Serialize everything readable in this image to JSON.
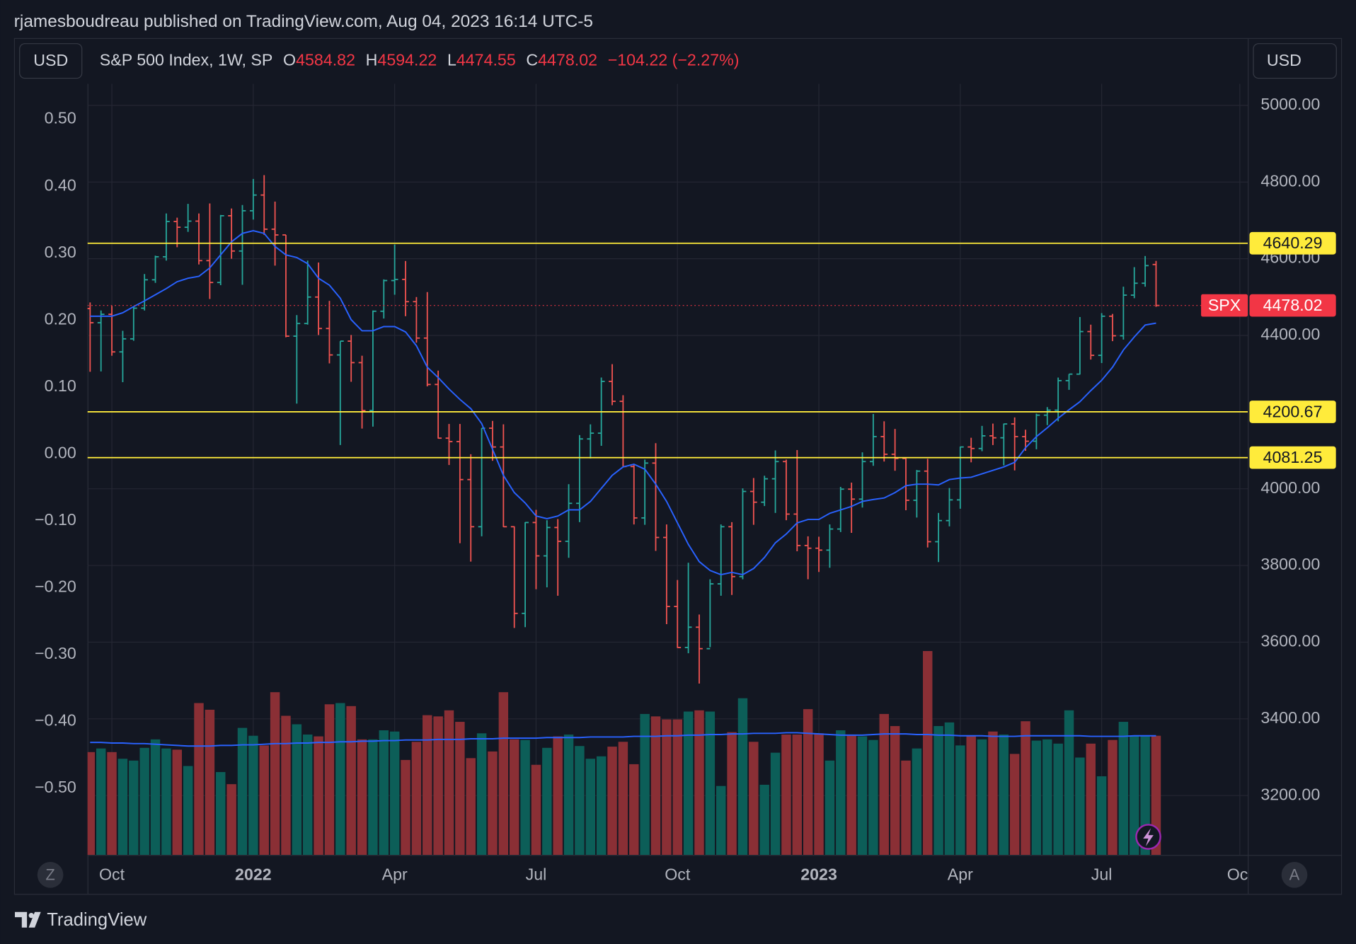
{
  "header": {
    "publisher": "rjamesboudreau published on TradingView.com, Aug 04, 2023 16:14 UTC-5",
    "currency_left": "USD",
    "currency_right": "USD",
    "brand": "TradingView",
    "left_button": "Z",
    "right_button": "A"
  },
  "chart_data": {
    "type": "ohlc",
    "title": "S&P 500 Index, 1W, SP",
    "legend_labels": {
      "open": "O",
      "high": "H",
      "low": "L",
      "close": "C"
    },
    "change_label": "−104.22 (−2.27%)",
    "symbol": "SPX",
    "ohlc": {
      "open": [
        4470,
        4433,
        4455,
        4357,
        4391,
        4471,
        4545,
        4605,
        4697,
        4682,
        4698,
        4595,
        4538,
        4712,
        4620,
        4725,
        4766,
        4677,
        4662,
        4398,
        4431,
        4500,
        4418,
        4349,
        4385,
        4329,
        4204,
        4463,
        4543,
        4546,
        4488,
        4393,
        4272,
        4132,
        4123,
        4024,
        3901,
        4158,
        4109,
        3901,
        3675,
        3912,
        3825,
        3899,
        3863,
        3962,
        4130,
        4145,
        4280,
        4228,
        4058,
        3924,
        4067,
        3873,
        3693,
        3586,
        3639,
        3583,
        3752,
        3901,
        3771,
        3993,
        3965,
        4026,
        4071,
        3934,
        3852,
        3845,
        3840,
        3895,
        3999,
        3973,
        4071,
        4136,
        4090,
        4079,
        3970,
        4046,
        3862,
        3917,
        3971,
        4109,
        4105,
        4138,
        4133,
        4169,
        4136,
        4124,
        4192,
        4205,
        4282,
        4299,
        4410,
        4348,
        4450,
        4399,
        4505,
        4536,
        4584.82
      ],
      "high": [
        4486,
        4465,
        4477,
        4412,
        4476,
        4560,
        4608,
        4718,
        4707,
        4743,
        4718,
        4744,
        4714,
        4731,
        4740,
        4808,
        4818,
        4749,
        4662,
        4453,
        4595,
        4590,
        4490,
        4385,
        4401,
        4347,
        4465,
        4546,
        4637,
        4594,
        4500,
        4513,
        4308,
        4169,
        4169,
        4090,
        4158,
        4177,
        4168,
        3902,
        3913,
        3945,
        3918,
        3921,
        4012,
        4140,
        4168,
        4290,
        4325,
        4244,
        4062,
        4076,
        4119,
        3907,
        3762,
        3807,
        3672,
        3764,
        3907,
        3913,
        4001,
        4028,
        4034,
        4100,
        4076,
        4101,
        3876,
        3875,
        3907,
        4005,
        4016,
        4095,
        4195,
        4176,
        4156,
        4082,
        4049,
        4078,
        3937,
        4002,
        4110,
        4133,
        4164,
        4170,
        4170,
        4186,
        4154,
        4196,
        4213,
        4290,
        4299,
        4448,
        4428,
        4458,
        4456,
        4527,
        4578,
        4607,
        4594.22
      ],
      "low": [
        4305,
        4306,
        4347,
        4278,
        4386,
        4465,
        4537,
        4595,
        4630,
        4670,
        4585,
        4495,
        4531,
        4600,
        4532,
        4702,
        4662,
        4582,
        4395,
        4222,
        4428,
        4401,
        4327,
        4114,
        4279,
        4157,
        4162,
        4444,
        4506,
        4450,
        4381,
        4267,
        4131,
        4062,
        3858,
        3810,
        3876,
        4073,
        3900,
        3637,
        3639,
        3738,
        3743,
        3721,
        3820,
        3913,
        4079,
        4112,
        4218,
        4058,
        3907,
        3906,
        3838,
        3647,
        3585,
        3571,
        3492,
        3587,
        3721,
        3723,
        3764,
        3906,
        3955,
        3937,
        3918,
        3837,
        3764,
        3783,
        3794,
        3887,
        3885,
        3951,
        4060,
        4071,
        4047,
        3944,
        3925,
        3847,
        3809,
        3902,
        3948,
        4069,
        4098,
        4114,
        4061,
        4048,
        4099,
        4103,
        4166,
        4176,
        4258,
        4298,
        4337,
        4328,
        4385,
        4389,
        4497,
        4527,
        4474.55
      ],
      "close": [
        4433,
        4455,
        4357,
        4391,
        4471,
        4545,
        4605,
        4697,
        4682,
        4698,
        4595,
        4538,
        4712,
        4620,
        4725,
        4766,
        4677,
        4662,
        4398,
        4431,
        4500,
        4418,
        4349,
        4385,
        4329,
        4204,
        4463,
        4543,
        4546,
        4488,
        4393,
        4272,
        4132,
        4123,
        4024,
        3901,
        4158,
        4109,
        3901,
        3675,
        3912,
        3825,
        3899,
        3863,
        3962,
        4130,
        4145,
        4280,
        4228,
        4058,
        3924,
        4067,
        3873,
        3693,
        3586,
        3639,
        3583,
        3752,
        3901,
        3771,
        3993,
        3965,
        4026,
        4071,
        3934,
        3852,
        3845,
        3840,
        3895,
        3999,
        3973,
        4071,
        4136,
        4090,
        4079,
        3970,
        4046,
        3862,
        3917,
        3971,
        4109,
        4105,
        4138,
        4133,
        4169,
        4136,
        4124,
        4192,
        4205,
        4282,
        4299,
        4410,
        4348,
        4450,
        4399,
        4505,
        4536,
        4582,
        4478.02
      ]
    },
    "up_color": "#26a69a",
    "down_color": "#ef5350",
    "volume": [
      17,
      17.6,
      17,
      15.9,
      15.6,
      17.7,
      19.1,
      17.6,
      17.4,
      14.7,
      25.1,
      24,
      13.7,
      11.7,
      21,
      19.7,
      18.1,
      26.9,
      23,
      21.6,
      19.9,
      19.6,
      24.9,
      25.1,
      24.6,
      19.1,
      19.1,
      20.6,
      20.4,
      15.7,
      18.7,
      23.1,
      22.9,
      23.9,
      22,
      16,
      20.1,
      17.1,
      26.9,
      19.1,
      19,
      14.9,
      17.7,
      19.6,
      19.9,
      18,
      15.9,
      16.3,
      17.9,
      18.7,
      15,
      23.3,
      22.9,
      22.4,
      22.4,
      23.7,
      23.9,
      23.7,
      11.4,
      20.3,
      25.9,
      18.7,
      11.6,
      16.9,
      19.9,
      19.9,
      24.1,
      20.1,
      15.6,
      20.6,
      19.9,
      19.6,
      19,
      23.3,
      21.3,
      15.6,
      17.6,
      33.7,
      21.3,
      21.9,
      18.1,
      19.7,
      19.1,
      20.4,
      19.9,
      16.7,
      22.1,
      18.9,
      19.1,
      18.4,
      23.9,
      16.1,
      18.4,
      13,
      19,
      22,
      19.7,
      19.7,
      19.7
    ],
    "volume_up_color": "#0c5e58",
    "volume_down_color": "#8a2f35",
    "volume_ma": [
      18.6,
      18.6,
      18.5,
      18.5,
      18.4,
      18.4,
      18.3,
      18.2,
      18.1,
      18.0,
      18.0,
      18.0,
      18.1,
      18.1,
      18.2,
      18.2,
      18.3,
      18.4,
      18.4,
      18.5,
      18.5,
      18.6,
      18.6,
      18.7,
      18.7,
      18.8,
      18.8,
      18.9,
      18.9,
      19.0,
      19.0,
      19.0,
      19.1,
      19.1,
      19.1,
      19.2,
      19.2,
      19.2,
      19.3,
      19.3,
      19.3,
      19.3,
      19.4,
      19.4,
      19.4,
      19.4,
      19.5,
      19.5,
      19.5,
      19.5,
      19.6,
      19.6,
      19.6,
      19.7,
      19.7,
      19.8,
      19.8,
      19.9,
      19.9,
      20.0,
      20.0,
      20.1,
      20.1,
      20.1,
      20.2,
      20.2,
      20.1,
      20.0,
      19.9,
      19.8,
      19.8,
      19.8,
      19.9,
      20.0,
      20.0,
      20.0,
      19.9,
      19.9,
      19.8,
      19.8,
      19.7,
      19.7,
      19.7,
      19.6,
      19.6,
      19.6,
      19.7,
      19.7,
      19.7,
      19.7,
      19.7,
      19.7,
      19.6,
      19.6,
      19.6,
      19.6,
      19.7,
      19.7,
      19.7
    ],
    "volume_ma_color": "#2962ff",
    "ma": [
      4450,
      4450,
      4450,
      4459,
      4475,
      4490,
      4506,
      4522,
      4540,
      4549,
      4554,
      4576,
      4610,
      4644,
      4666,
      4673,
      4666,
      4632,
      4610,
      4603,
      4587,
      4549,
      4531,
      4497,
      4441,
      4412,
      4412,
      4423,
      4423,
      4409,
      4373,
      4317,
      4290,
      4260,
      4233,
      4209,
      4170,
      4103,
      4035,
      3990,
      3963,
      3929,
      3922,
      3929,
      3945,
      3945,
      3967,
      4001,
      4035,
      4057,
      4064,
      4051,
      4012,
      3967,
      3911,
      3855,
      3810,
      3787,
      3776,
      3782,
      3776,
      3792,
      3821,
      3859,
      3882,
      3911,
      3920,
      3920,
      3936,
      3945,
      3954,
      3967,
      3972,
      3976,
      3990,
      4008,
      4012,
      4012,
      4010,
      4024,
      4028,
      4030,
      4039,
      4048,
      4057,
      4069,
      4107,
      4136,
      4159,
      4184,
      4206,
      4227,
      4256,
      4283,
      4317,
      4362,
      4396,
      4427,
      4432
    ],
    "ma_color": "#2962ff",
    "levels": [
      {
        "value": 4640.29,
        "color": "#ffeb3b"
      },
      {
        "value": 4200.67,
        "color": "#ffeb3b"
      },
      {
        "value": 4081.25,
        "color": "#ffeb3b"
      }
    ],
    "last_price_color": "#f23645",
    "xlim": [
      -0.24,
      106.43
    ],
    "xticks": [
      {
        "value": 2,
        "label": "Oct"
      },
      {
        "value": 15,
        "label": "2022"
      },
      {
        "value": 28,
        "label": "Apr"
      },
      {
        "value": 41,
        "label": "Jul"
      },
      {
        "value": 54,
        "label": "Oct"
      },
      {
        "value": 67,
        "label": "2023"
      },
      {
        "value": 80,
        "label": "Apr"
      },
      {
        "value": 93,
        "label": "Jul"
      },
      {
        "value": 105.7,
        "label": "Oct"
      }
    ],
    "ylim": [
      3045,
      5056
    ],
    "yticks": [
      {
        "value": 3200,
        "label": "3200.00"
      },
      {
        "value": 3400,
        "label": "3400.00"
      },
      {
        "value": 3600,
        "label": "3600.00"
      },
      {
        "value": 3800,
        "label": "3800.00"
      },
      {
        "value": 4000,
        "label": "4000.00"
      },
      {
        "value": 4400,
        "label": "4400.00"
      },
      {
        "value": 4600,
        "label": "4600.00"
      },
      {
        "value": 4800,
        "label": "4800.00"
      },
      {
        "value": 5000,
        "label": "5000.00"
      }
    ],
    "y2lim": [
      -0.5995,
      0.553
    ],
    "y2ticks": [
      {
        "value": 0.5,
        "label": "0.50"
      },
      {
        "value": 0.4,
        "label": "0.40"
      },
      {
        "value": 0.3,
        "label": "0.30"
      },
      {
        "value": 0.2,
        "label": "0.20"
      },
      {
        "value": 0.1,
        "label": "0.10"
      },
      {
        "value": 0,
        "label": "0.00"
      },
      {
        "value": -0.1,
        "label": "−0.10"
      },
      {
        "value": -0.2,
        "label": "−0.20"
      },
      {
        "value": -0.3,
        "label": "−0.30"
      },
      {
        "value": -0.4,
        "label": "−0.40"
      },
      {
        "value": -0.5,
        "label": "−0.50"
      }
    ],
    "grid": true
  }
}
